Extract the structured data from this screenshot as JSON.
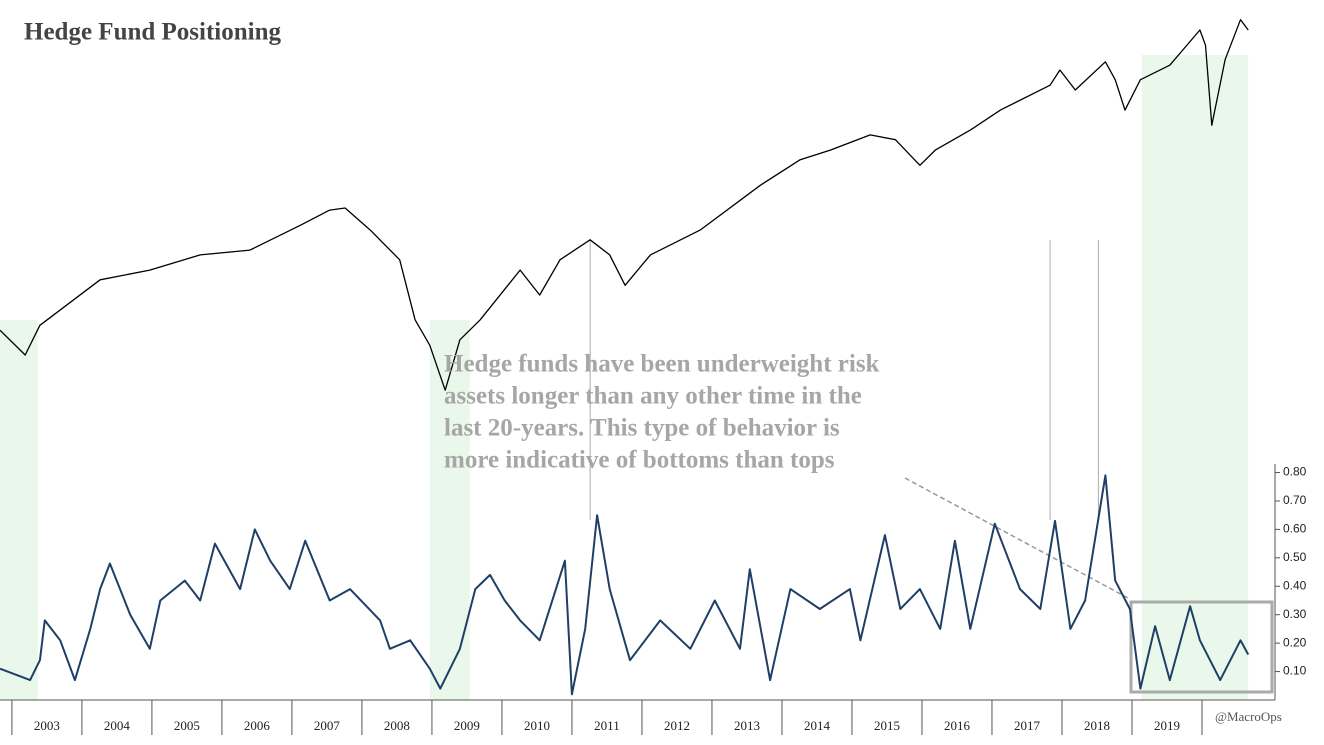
{
  "chart_data": {
    "type": "line",
    "title": "Hedge Fund Positioning",
    "annotation": [
      "Hedge funds have been underweight risk",
      "assets longer than any other time in the",
      "last 20-years. This type of behavior is",
      "more indicative of bottoms than tops"
    ],
    "credit": "@MacroOps",
    "xlim": [
      2002.83,
      2020.9
    ],
    "xticks": [
      {
        "value": 2003.5,
        "label": "2003"
      },
      {
        "value": 2004.5,
        "label": "2004"
      },
      {
        "value": 2005.5,
        "label": "2005"
      },
      {
        "value": 2006.5,
        "label": "2006"
      },
      {
        "value": 2007.5,
        "label": "2007"
      },
      {
        "value": 2008.5,
        "label": "2008"
      },
      {
        "value": 2009.5,
        "label": "2009"
      },
      {
        "value": 2010.5,
        "label": "2010"
      },
      {
        "value": 2011.5,
        "label": "2011"
      },
      {
        "value": 2012.5,
        "label": "2012"
      },
      {
        "value": 2013.5,
        "label": "2013"
      },
      {
        "value": 2014.5,
        "label": "2014"
      },
      {
        "value": 2015.5,
        "label": "2015"
      },
      {
        "value": 2016.5,
        "label": "2016"
      },
      {
        "value": 2017.5,
        "label": "2017"
      },
      {
        "value": 2018.5,
        "label": "2018"
      },
      {
        "value": 2019.5,
        "label": "2019"
      }
    ],
    "ylim": [
      0,
      0.83
    ],
    "yticks": [
      {
        "value": 0.1,
        "label": "0.10"
      },
      {
        "value": 0.2,
        "label": "0.20"
      },
      {
        "value": 0.3,
        "label": "0.30"
      },
      {
        "value": 0.4,
        "label": "0.40"
      },
      {
        "value": 0.5,
        "label": "0.50"
      },
      {
        "value": 0.6,
        "label": "0.60"
      },
      {
        "value": 0.7,
        "label": "0.70"
      },
      {
        "value": 0.8,
        "label": "0.80"
      }
    ],
    "y2lim": [
      0,
      100
    ],
    "shaded_spans": [
      [
        2002.83,
        2003.37
      ],
      [
        2008.97,
        2009.54
      ],
      [
        2019.14,
        2020.66
      ]
    ],
    "shade_color": "#eaf8ec",
    "reference_lines": [
      2011.26,
      2017.83,
      2018.52
    ],
    "series": [
      {
        "color": "#000000",
        "axis": "y2",
        "x": [
          2002.83,
          2003.19,
          2003.4,
          2004.26,
          2004.97,
          2005.69,
          2006.4,
          2007.12,
          2007.54,
          2007.76,
          2008.12,
          2008.54,
          2008.76,
          2008.97,
          2009.19,
          2009.4,
          2009.69,
          2010.26,
          2010.54,
          2010.83,
          2011.26,
          2011.54,
          2011.76,
          2012.12,
          2012.83,
          2013.69,
          2014.26,
          2014.69,
          2015.26,
          2015.62,
          2015.97,
          2016.19,
          2016.69,
          2017.12,
          2017.83,
          2017.97,
          2018.19,
          2018.62,
          2018.76,
          2018.9,
          2019.12,
          2019.54,
          2019.97,
          2020.05,
          2020.14,
          2020.33,
          2020.55,
          2020.66
        ],
        "values": [
          53.6,
          50.0,
          54.3,
          60.9,
          62.3,
          64.5,
          65.2,
          68.8,
          71.0,
          71.3,
          68.1,
          63.8,
          55.1,
          51.4,
          44.9,
          52.2,
          55.1,
          62.3,
          58.7,
          63.8,
          66.7,
          64.5,
          60.1,
          64.5,
          68.1,
          74.6,
          78.3,
          79.7,
          81.9,
          81.2,
          77.5,
          79.7,
          82.6,
          85.5,
          89.1,
          91.3,
          88.4,
          92.5,
          89.9,
          85.5,
          89.9,
          92.0,
          97.1,
          94.9,
          83.3,
          92.8,
          98.6,
          97.1
        ]
      },
      {
        "color": "#1f3f66",
        "axis": "y",
        "x": [
          2002.83,
          2003.26,
          2003.4,
          2003.47,
          2003.69,
          2003.9,
          2004.12,
          2004.26,
          2004.4,
          2004.69,
          2004.97,
          2005.12,
          2005.47,
          2005.69,
          2005.9,
          2006.26,
          2006.47,
          2006.69,
          2006.97,
          2007.19,
          2007.54,
          2007.83,
          2008.26,
          2008.4,
          2008.69,
          2008.97,
          2009.12,
          2009.4,
          2009.62,
          2009.83,
          2010.04,
          2010.26,
          2010.54,
          2010.9,
          2011.0,
          2011.19,
          2011.36,
          2011.54,
          2011.83,
          2012.26,
          2012.69,
          2013.04,
          2013.4,
          2013.54,
          2013.83,
          2014.12,
          2014.54,
          2014.97,
          2015.12,
          2015.47,
          2015.69,
          2015.97,
          2016.26,
          2016.47,
          2016.69,
          2017.04,
          2017.4,
          2017.69,
          2017.9,
          2018.12,
          2018.33,
          2018.62,
          2018.76,
          2018.97,
          2019.12,
          2019.33,
          2019.54,
          2019.83,
          2019.97,
          2020.26,
          2020.55,
          2020.66
        ],
        "values": [
          0.11,
          0.07,
          0.14,
          0.28,
          0.21,
          0.07,
          0.25,
          0.39,
          0.48,
          0.3,
          0.18,
          0.35,
          0.42,
          0.35,
          0.55,
          0.39,
          0.6,
          0.49,
          0.39,
          0.56,
          0.35,
          0.39,
          0.28,
          0.18,
          0.21,
          0.11,
          0.04,
          0.18,
          0.39,
          0.44,
          0.35,
          0.28,
          0.21,
          0.49,
          0.02,
          0.25,
          0.65,
          0.39,
          0.14,
          0.28,
          0.18,
          0.35,
          0.18,
          0.46,
          0.07,
          0.39,
          0.32,
          0.39,
          0.21,
          0.58,
          0.32,
          0.39,
          0.25,
          0.56,
          0.25,
          0.62,
          0.39,
          0.32,
          0.63,
          0.25,
          0.35,
          0.79,
          0.42,
          0.32,
          0.04,
          0.26,
          0.07,
          0.33,
          0.21,
          0.07,
          0.21,
          0.16
        ]
      }
    ]
  }
}
